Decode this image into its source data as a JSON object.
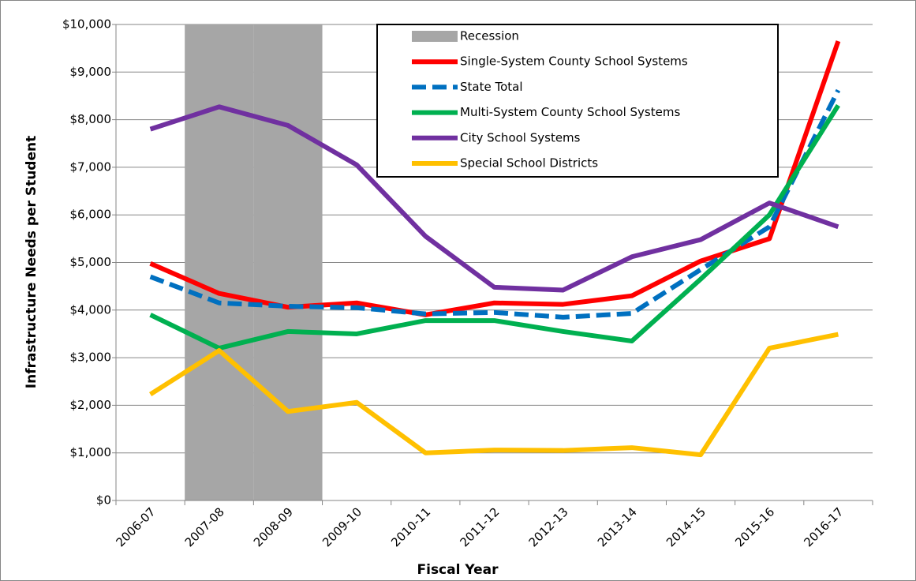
{
  "chart_data": {
    "type": "line",
    "x_label": "Fiscal Year",
    "y_label": "Infrastructure Needs per Student",
    "categories": [
      "2006-07",
      "2007-08",
      "2008-09",
      "2009-10",
      "2010-11",
      "2011-12",
      "2012-13",
      "2013-14",
      "2014-15",
      "2015-16",
      "2016-17"
    ],
    "ylim": [
      0,
      10000
    ],
    "yticks": [
      {
        "value": 0,
        "label": "$0"
      },
      {
        "value": 1000,
        "label": "$1,000"
      },
      {
        "value": 2000,
        "label": "$2,000"
      },
      {
        "value": 3000,
        "label": "$3,000"
      },
      {
        "value": 4000,
        "label": "$4,000"
      },
      {
        "value": 5000,
        "label": "$5,000"
      },
      {
        "value": 6000,
        "label": "$6,000"
      },
      {
        "value": 7000,
        "label": "$7,000"
      },
      {
        "value": 8000,
        "label": "$8,000"
      },
      {
        "value": 9000,
        "label": "$9,000"
      },
      {
        "value": 10000,
        "label": "$10,000"
      }
    ],
    "grid": true,
    "legend": "top-right",
    "series": [
      {
        "name": "Recession",
        "type": "bar",
        "color": "#a6a6a6",
        "values": [
          null,
          10000,
          10000,
          null,
          null,
          null,
          null,
          null,
          null,
          null,
          null
        ]
      },
      {
        "name": "Single-System County School Systems",
        "color": "#ff0000",
        "values": [
          4980,
          4350,
          4060,
          4150,
          3900,
          4150,
          4120,
          4300,
          5030,
          5500,
          9650
        ]
      },
      {
        "name": "State Total",
        "color": "#0070c0",
        "dashed": true,
        "values": [
          4700,
          4150,
          4080,
          4050,
          3920,
          3950,
          3850,
          3930,
          4850,
          5750,
          8620
        ]
      },
      {
        "name": "Multi-System County School Systems",
        "color": "#00b050",
        "values": [
          3900,
          3200,
          3550,
          3500,
          3780,
          3780,
          3550,
          3350,
          4650,
          6000,
          8300
        ]
      },
      {
        "name": "City School Systems",
        "color": "#7030a0",
        "values": [
          7800,
          8270,
          7880,
          7050,
          5550,
          4480,
          4420,
          5120,
          5480,
          6250,
          5750
        ]
      },
      {
        "name": "Special School Districts",
        "color": "#ffc000",
        "values": [
          2230,
          3150,
          1870,
          2060,
          1000,
          1060,
          1050,
          1110,
          960,
          3200,
          3490
        ]
      }
    ]
  }
}
